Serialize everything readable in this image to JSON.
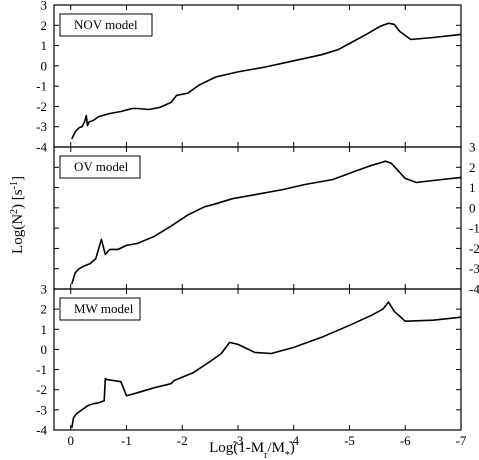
{
  "chart_data": {
    "type": "line",
    "xlabel_parts": {
      "base": "Log(1-M",
      "sub1": "r",
      "mid": "/M",
      "sub2": "*",
      "end": ")"
    },
    "ylabel_parts": {
      "base": "Log(N",
      "sup": "2",
      "mid": ") [s",
      "unit_sup": "-1",
      "end": "]"
    },
    "xlim": [
      0.3,
      -7
    ],
    "x_ticks": [
      0,
      -1,
      -2,
      -3,
      -4,
      -5,
      -6,
      -7
    ],
    "x_tick_labels": [
      "0",
      "-1",
      "-2",
      "-3",
      "-4",
      "-5",
      "-6",
      "-7"
    ],
    "panels": [
      {
        "legend": "NOV model",
        "ylim": [
          -4,
          3
        ],
        "y_ticks": [
          3,
          2,
          1,
          0,
          -1,
          -2,
          -3,
          -4
        ],
        "y_tick_labels": [
          "3",
          "2",
          "1",
          "0",
          "-1",
          "-2",
          "-3",
          "-4"
        ],
        "tick_side": "left",
        "series": [
          {
            "x": [
              -0.02,
              -0.08,
              -0.15,
              -0.2,
              -0.25,
              -0.28,
              -0.3,
              -0.32,
              -0.34,
              -0.4,
              -0.5,
              -0.7,
              -0.9,
              -1.1,
              -1.2,
              -1.4,
              -1.6,
              -1.8,
              -1.9,
              -2.1,
              -2.3,
              -2.6,
              -3.0,
              -3.5,
              -4.0,
              -4.5,
              -4.8,
              -5.0,
              -5.3,
              -5.55,
              -5.7,
              -5.8,
              -5.9,
              -6.1,
              -6.5,
              -7.0
            ],
            "y": [
              -3.6,
              -3.25,
              -3.05,
              -3.0,
              -2.75,
              -2.45,
              -2.95,
              -2.8,
              -2.75,
              -2.7,
              -2.5,
              -2.35,
              -2.25,
              -2.1,
              -2.1,
              -2.15,
              -2.05,
              -1.8,
              -1.45,
              -1.35,
              -0.95,
              -0.55,
              -0.3,
              -0.05,
              0.25,
              0.55,
              0.8,
              1.1,
              1.55,
              1.95,
              2.1,
              2.05,
              1.7,
              1.3,
              1.4,
              1.55
            ]
          }
        ]
      },
      {
        "legend": "OV model",
        "ylim": [
          -4,
          3
        ],
        "y_ticks": [
          3,
          2,
          1,
          0,
          -1,
          -2,
          -3,
          -4
        ],
        "y_tick_labels": [
          "3",
          "2",
          "1",
          "0",
          "-1",
          "-2",
          "-3",
          "-4"
        ],
        "tick_side": "right",
        "left_corner_labels": [
          "3"
        ],
        "series": [
          {
            "x": [
              -0.02,
              -0.08,
              -0.15,
              -0.25,
              -0.35,
              -0.45,
              -0.55,
              -0.62,
              -0.7,
              -0.85,
              -1.0,
              -1.2,
              -1.5,
              -1.8,
              -2.1,
              -2.4,
              -2.6,
              -2.9,
              -3.3,
              -3.8,
              -4.2,
              -4.7,
              -5.1,
              -5.4,
              -5.65,
              -5.75,
              -5.85,
              -6.0,
              -6.2,
              -6.5,
              -7.0
            ],
            "y": [
              -3.75,
              -3.2,
              -3.0,
              -2.85,
              -2.75,
              -2.5,
              -1.55,
              -2.3,
              -2.05,
              -2.05,
              -1.85,
              -1.75,
              -1.4,
              -0.9,
              -0.35,
              0.05,
              0.2,
              0.45,
              0.65,
              0.9,
              1.15,
              1.4,
              1.8,
              2.1,
              2.3,
              2.2,
              1.9,
              1.45,
              1.25,
              1.35,
              1.5
            ]
          }
        ]
      },
      {
        "legend": "MW model",
        "ylim": [
          -4,
          3
        ],
        "y_ticks": [
          2,
          1,
          0,
          -1,
          -2,
          -3,
          -4
        ],
        "y_tick_labels": [
          "2",
          "1",
          "0",
          "-1",
          "-2",
          "-3",
          "-4"
        ],
        "tick_side": "left",
        "series": [
          {
            "x": [
              -0.02,
              -0.05,
              -0.1,
              -0.2,
              -0.3,
              -0.4,
              -0.5,
              -0.6,
              -0.62,
              -0.65,
              -0.9,
              -1.0,
              -1.2,
              -1.5,
              -1.8,
              -1.85,
              -2.2,
              -2.5,
              -2.7,
              -2.85,
              -3.0,
              -3.3,
              -3.6,
              -4.0,
              -4.5,
              -5.0,
              -5.4,
              -5.6,
              -5.7,
              -5.8,
              -6.0,
              -6.5,
              -7.0
            ],
            "y": [
              -3.9,
              -3.4,
              -3.2,
              -3.0,
              -2.8,
              -2.7,
              -2.65,
              -2.55,
              -1.45,
              -1.5,
              -1.6,
              -2.3,
              -2.15,
              -1.9,
              -1.7,
              -1.55,
              -1.15,
              -0.6,
              -0.2,
              0.35,
              0.25,
              -0.15,
              -0.2,
              0.1,
              0.6,
              1.2,
              1.7,
              2.0,
              2.35,
              1.9,
              1.4,
              1.45,
              1.6
            ]
          }
        ]
      }
    ]
  }
}
